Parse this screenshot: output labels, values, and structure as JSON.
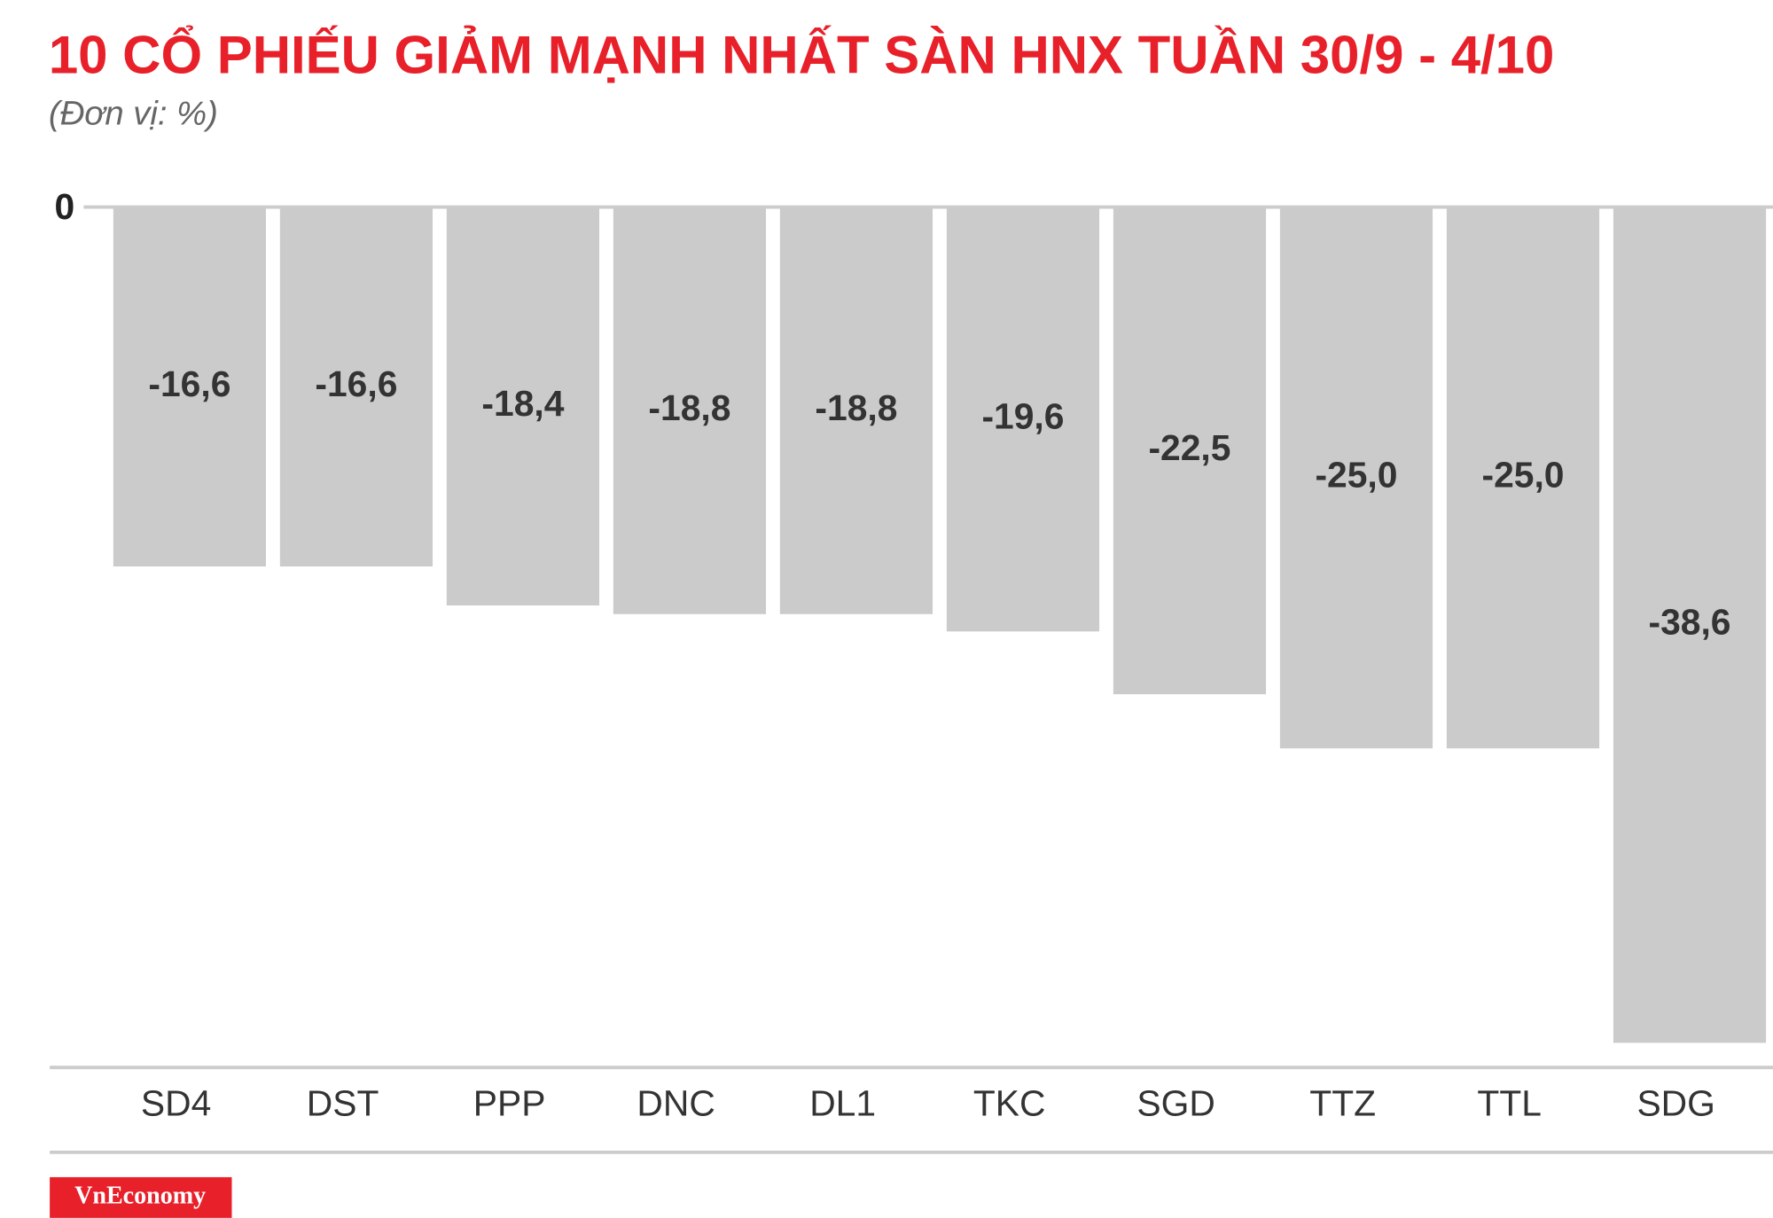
{
  "chart_data": {
    "type": "bar",
    "title": "10 CỔ PHIẾU GIẢM MẠNH NHẤT SÀN HNX TUẦN 30/9 - 4/10",
    "subtitle": "(Đơn vị: %)",
    "source": "VnEconomy",
    "categories": [
      "SD4",
      "DST",
      "PPP",
      "DNC",
      "DL1",
      "TKC",
      "SGD",
      "TTZ",
      "TTL",
      "SDG"
    ],
    "values": [
      -16.6,
      -16.6,
      -18.4,
      -18.8,
      -18.8,
      -19.6,
      -22.5,
      -25.0,
      -25.0,
      -38.6
    ],
    "value_labels": [
      "-16,6",
      "-16,6",
      "-18,4",
      "-18,8",
      "-18,8",
      "-19,6",
      "-22,5",
      "-25,0",
      "-25,0",
      "-38,6"
    ],
    "color": "#cccbcc",
    "ylim": [
      -40,
      0
    ],
    "yticks": [
      0
    ]
  }
}
